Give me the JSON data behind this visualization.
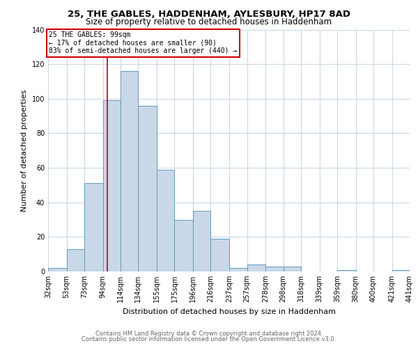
{
  "title1": "25, THE GABLES, HADDENHAM, AYLESBURY, HP17 8AD",
  "title2": "Size of property relative to detached houses in Haddenham",
  "xlabel": "Distribution of detached houses by size in Haddenham",
  "ylabel": "Number of detached properties",
  "bar_color": "#c8d8e8",
  "bar_edge_color": "#6699bb",
  "grid_color": "#c8d8e8",
  "vline_color": "#cc0000",
  "vline_x": 99,
  "annotation_line1": "25 THE GABLES: 99sqm",
  "annotation_line2": "← 17% of detached houses are smaller (90)",
  "annotation_line3": "83% of semi-detached houses are larger (440) →",
  "annotation_box_edge": "#cc0000",
  "footer1": "Contains HM Land Registry data © Crown copyright and database right 2024.",
  "footer2": "Contains public sector information licensed under the Open Government Licence v3.0.",
  "bins": [
    32,
    53,
    73,
    94,
    114,
    134,
    155,
    175,
    196,
    216,
    237,
    257,
    278,
    298,
    318,
    339,
    359,
    380,
    400,
    421,
    441
  ],
  "counts": [
    2,
    13,
    51,
    99,
    116,
    96,
    59,
    30,
    35,
    19,
    2,
    4,
    3,
    3,
    0,
    0,
    1,
    0,
    0,
    1
  ],
  "ylim": [
    0,
    140
  ],
  "yticks": [
    0,
    20,
    40,
    60,
    80,
    100,
    120,
    140
  ],
  "title1_fontsize": 9.5,
  "title2_fontsize": 8.5,
  "axis_label_fontsize": 8,
  "tick_fontsize": 7,
  "annotation_fontsize": 7,
  "footer_fontsize": 6
}
